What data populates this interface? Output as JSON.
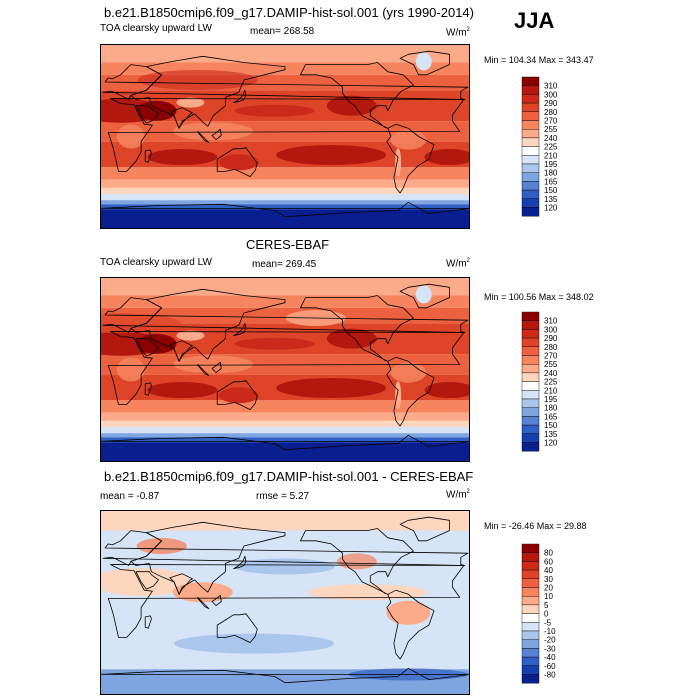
{
  "season": "JJA",
  "panels": [
    {
      "id": "model",
      "title": "b.e21.B1850cmip6.f09_g17.DAMIP-hist-sol.001 (yrs 1990-2014)",
      "left_label": "TOA clearsky upward LW",
      "center_label": "mean= 268.58",
      "units": "W/m",
      "units_sup": "2",
      "minmax": "Min = 104.34 Max = 343.47",
      "kind": "abs"
    },
    {
      "id": "obs",
      "title": "CERES-EBAF",
      "left_label": "TOA clearsky upward LW",
      "center_label": "mean= 269.45",
      "units": "W/m",
      "units_sup": "2",
      "minmax": "Min = 100.56 Max = 348.02",
      "kind": "abs"
    },
    {
      "id": "diff",
      "title": "b.e21.B1850cmip6.f09_g17.DAMIP-hist-sol.001 - CERES-EBAF",
      "left_label": "mean =  -0.87",
      "center_label": "rmse =  5.27",
      "units": "W/m",
      "units_sup": "2",
      "minmax": "Min = -26.46 Max =  29.88",
      "kind": "diff"
    }
  ],
  "chart_data": [
    {
      "type": "heatmap",
      "title": "b.e21.B1850cmip6.f09_g17.DAMIP-hist-sol.001 (yrs 1990-2014)",
      "variable": "TOA clearsky upward LW",
      "season": "JJA",
      "mean": 268.58,
      "min": 104.34,
      "max": 343.47,
      "units": "W/m2",
      "colorbar_levels": [
        310,
        300,
        290,
        280,
        270,
        255,
        240,
        225,
        210,
        195,
        180,
        165,
        150,
        135,
        120
      ],
      "colorbar_colors": [
        "#8b0000",
        "#b2180e",
        "#cb2a1a",
        "#de4528",
        "#ec6240",
        "#f5845f",
        "#fbab8a",
        "#fdd6c0",
        "#ffffff",
        "#d5e4f6",
        "#aac6ec",
        "#7fa5e0",
        "#5683d2",
        "#3060c3",
        "#1640b0",
        "#0a1f8f"
      ]
    },
    {
      "type": "heatmap",
      "title": "CERES-EBAF",
      "variable": "TOA clearsky upward LW",
      "season": "JJA",
      "mean": 269.45,
      "min": 100.56,
      "max": 348.02,
      "units": "W/m2",
      "colorbar_levels": [
        310,
        300,
        290,
        280,
        270,
        255,
        240,
        225,
        210,
        195,
        180,
        165,
        150,
        135,
        120
      ],
      "colorbar_colors": [
        "#8b0000",
        "#b2180e",
        "#cb2a1a",
        "#de4528",
        "#ec6240",
        "#f5845f",
        "#fbab8a",
        "#fdd6c0",
        "#ffffff",
        "#d5e4f6",
        "#aac6ec",
        "#7fa5e0",
        "#5683d2",
        "#3060c3",
        "#1640b0",
        "#0a1f8f"
      ]
    },
    {
      "type": "heatmap",
      "title": "b.e21.B1850cmip6.f09_g17.DAMIP-hist-sol.001 - CERES-EBAF",
      "season": "JJA",
      "mean": -0.87,
      "rmse": 5.27,
      "min": -26.46,
      "max": 29.88,
      "units": "W/m2",
      "colorbar_levels": [
        80,
        60,
        40,
        30,
        20,
        10,
        5,
        0,
        -5,
        -10,
        -20,
        -30,
        -40,
        -60,
        -80
      ],
      "colorbar_colors": [
        "#8b0000",
        "#b2180e",
        "#cb2a1a",
        "#de4528",
        "#ec6240",
        "#f5845f",
        "#fbab8a",
        "#fdd6c0",
        "#ffffff",
        "#d5e4f6",
        "#aac6ec",
        "#7fa5e0",
        "#5683d2",
        "#3060c3",
        "#1640b0",
        "#0a1f8f"
      ]
    }
  ]
}
